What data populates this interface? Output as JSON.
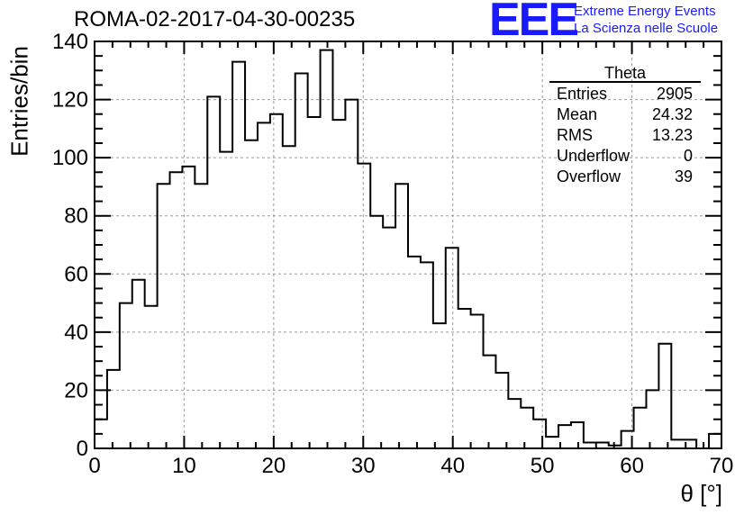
{
  "header": {
    "title": "ROMA-02-2017-04-30-00235",
    "logo_mark": "EEE",
    "logo_line1": "Extreme Energy Events",
    "logo_line2": "La Scienza nelle Scuole"
  },
  "stats": {
    "title": "Theta",
    "rows": [
      {
        "label": "Entries",
        "value": "2905"
      },
      {
        "label": "Mean",
        "value": "24.32"
      },
      {
        "label": "RMS",
        "value": "13.23"
      },
      {
        "label": "Underflow",
        "value": "0"
      },
      {
        "label": "Overflow",
        "value": "39"
      }
    ]
  },
  "colors": {
    "line": "#000000",
    "grid": "#999999",
    "logo": "#1a1aff"
  },
  "chart_data": {
    "type": "bar",
    "histogram": true,
    "title": "ROMA-02-2017-04-30-00235",
    "xlabel": "θ [°]",
    "ylabel": "Entries/bin",
    "xlim": [
      0,
      70
    ],
    "ylim": [
      0,
      140
    ],
    "bin_width": 1.4,
    "grid": true,
    "x_ticks": [
      0,
      10,
      20,
      30,
      40,
      50,
      60,
      70
    ],
    "x_tick_labels": [
      "0",
      "10",
      "20",
      "30",
      "40",
      "50",
      "60",
      "70"
    ],
    "y_ticks": [
      0,
      20,
      40,
      60,
      80,
      100,
      120,
      140
    ],
    "y_tick_labels": [
      "0",
      "20",
      "40",
      "60",
      "80",
      "100",
      "120",
      "140"
    ],
    "values": [
      10,
      27,
      50,
      58,
      49,
      91,
      95,
      97,
      91,
      121,
      102,
      133,
      106,
      112,
      115,
      104,
      129,
      114,
      137,
      113,
      120,
      98,
      80,
      76,
      91,
      66,
      64,
      43,
      69,
      48,
      46,
      32,
      26,
      17,
      14,
      10,
      4,
      8,
      9,
      2,
      2,
      1,
      6,
      14,
      20,
      36,
      3,
      3,
      0,
      5
    ]
  }
}
